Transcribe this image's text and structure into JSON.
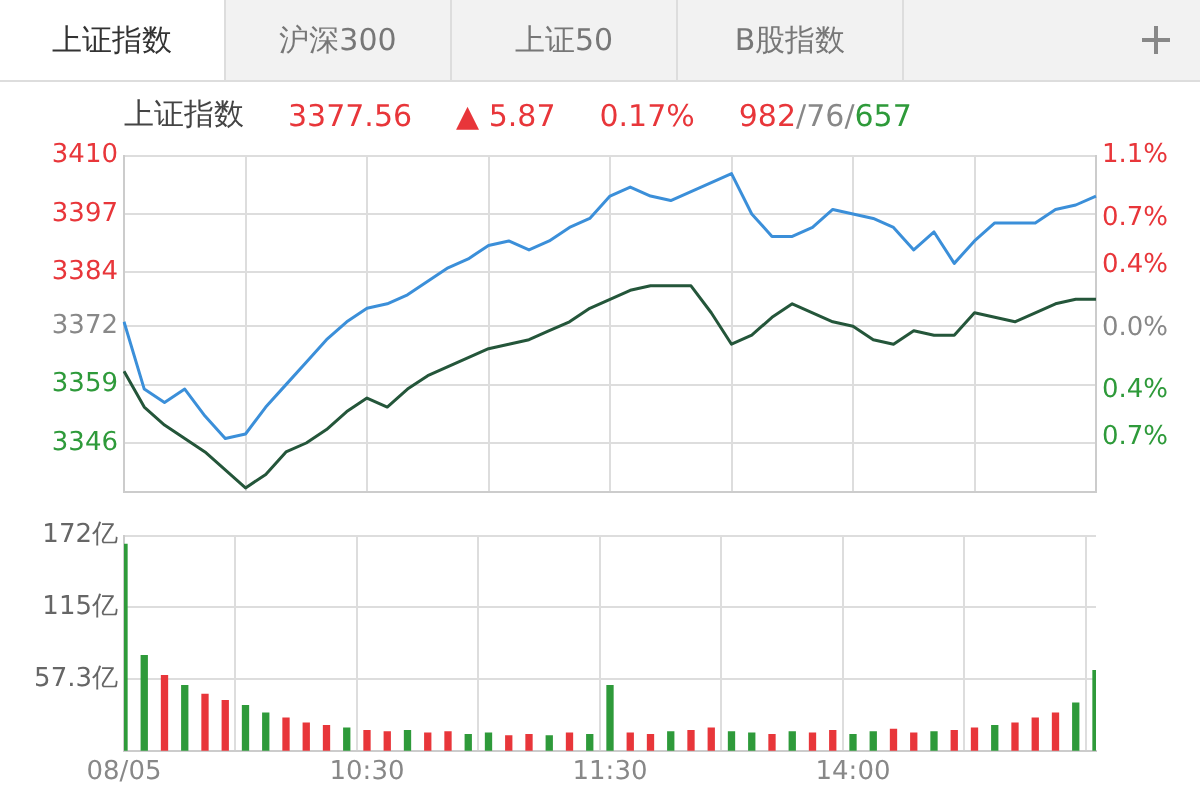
{
  "chart_data": [
    {
      "type": "line",
      "title": "上证指数",
      "annotations": [
        "上证指数",
        "沪深300",
        "上证50",
        "B股指数",
        "3377.56",
        "▲ 5.87",
        "0.17%",
        "982/76/657"
      ],
      "categories": [
        null,
        null,
        null,
        null,
        null,
        null,
        null,
        null,
        null,
        null,
        null,
        null,
        null,
        null,
        null,
        null,
        null,
        null,
        null,
        null,
        null,
        null,
        null,
        null,
        null,
        null,
        null,
        null,
        null,
        null,
        null,
        null,
        null,
        null,
        null,
        null,
        null,
        null,
        null,
        null,
        null,
        null,
        null,
        null,
        null,
        null,
        null,
        null,
        null
      ],
      "series": [
        {
          "color": "#3b8fd9",
          "values": [
            3373,
            3358,
            3355,
            3358,
            3352,
            3347,
            3348,
            3354,
            3359,
            3364,
            3369,
            3373,
            3376,
            3377,
            3379,
            3382,
            3385,
            3387,
            3390,
            3391,
            3389,
            3391,
            3394,
            3396,
            3401,
            3403,
            3401,
            3400,
            3402,
            3404,
            3406,
            3397,
            3392,
            3392,
            3394,
            3398,
            3397,
            3396,
            3394,
            3389,
            3393,
            3386,
            3391,
            3395,
            3395,
            3395,
            3398,
            3399,
            3401
          ]
        },
        {
          "color": "#24563a",
          "values": [
            3362,
            3354,
            3350,
            3347,
            3344,
            3340,
            3336,
            3339,
            3344,
            3346,
            3349,
            3353,
            3356,
            3354,
            3358,
            3361,
            3363,
            3365,
            3367,
            3368,
            3369,
            3371,
            3373,
            3376,
            3378,
            3380,
            3381,
            3381,
            3381,
            3375,
            3368,
            3370,
            3374,
            3377,
            3375,
            3373,
            3372,
            3369,
            3368,
            3371,
            3370,
            3370,
            3375,
            3374,
            3373,
            3375,
            3377,
            3378,
            3378
          ]
        }
      ],
      "ylim": [
        3335,
        3410
      ],
      "yticks": [
        3346,
        3359,
        3372,
        3384,
        3397,
        3410
      ],
      "y2lim": [
        -1.05,
        1.1
      ],
      "y2ticks": [
        {
          "value": -0.7,
          "label": "0.7%"
        },
        {
          "value": -0.4,
          "label": "0.4%"
        },
        {
          "value": 0,
          "label": "0.0%"
        },
        {
          "value": 0.4,
          "label": "0.4%"
        },
        {
          "value": 0.7,
          "label": "0.7%"
        },
        {
          "value": 1.1,
          "label": "1.1%"
        }
      ],
      "grid": true,
      "tick_labels": "y",
      "marker": "none",
      "line_style": "solid"
    },
    {
      "type": "bar",
      "categories": [
        "08/05",
        null,
        null,
        null,
        null,
        null,
        null,
        null,
        null,
        null,
        null,
        null,
        "10:30",
        null,
        null,
        null,
        null,
        null,
        null,
        null,
        null,
        null,
        null,
        null,
        "11:30",
        null,
        null,
        null,
        null,
        null,
        null,
        null,
        null,
        null,
        null,
        null,
        "14:00",
        null,
        null,
        null,
        null,
        null,
        null,
        null,
        null,
        null,
        null,
        null,
        null
      ],
      "values": [
        165,
        76,
        60,
        52,
        45,
        40,
        36,
        30,
        26,
        22,
        20,
        18,
        16,
        15,
        16,
        14,
        15,
        13,
        14,
        12,
        13,
        12,
        14,
        13,
        52,
        14,
        13,
        15,
        16,
        18,
        15,
        14,
        13,
        15,
        14,
        16,
        13,
        15,
        17,
        14,
        15,
        16,
        18,
        20,
        22,
        26,
        30,
        38,
        64
      ],
      "colors": [
        "#2e9a3a",
        "#2e9a3a",
        "#e8363a",
        "#2e9a3a",
        "#e8363a",
        "#e8363a",
        "#2e9a3a",
        "#2e9a3a",
        "#e8363a",
        "#e8363a",
        "#e8363a",
        "#2e9a3a",
        "#e8363a",
        "#e8363a",
        "#2e9a3a",
        "#e8363a",
        "#e8363a",
        "#2e9a3a",
        "#2e9a3a",
        "#e8363a",
        "#e8363a",
        "#2e9a3a",
        "#e8363a",
        "#2e9a3a",
        "#2e9a3a",
        "#e8363a",
        "#e8363a",
        "#2e9a3a",
        "#e8363a",
        "#e8363a",
        "#2e9a3a",
        "#2e9a3a",
        "#e8363a",
        "#2e9a3a",
        "#e8363a",
        "#e8363a",
        "#2e9a3a",
        "#2e9a3a",
        "#e8363a",
        "#e8363a",
        "#2e9a3a",
        "#e8363a",
        "#e8363a",
        "#2e9a3a",
        "#e8363a",
        "#e8363a",
        "#e8363a",
        "#2e9a3a",
        "#2e9a3a"
      ],
      "ylim": [
        0,
        172
      ],
      "yticks": [
        {
          "value": 57.3,
          "label": "57.3亿"
        },
        {
          "value": 115,
          "label": "115亿"
        },
        {
          "value": 172,
          "label": "172亿"
        }
      ],
      "grid": true
    }
  ]
}
